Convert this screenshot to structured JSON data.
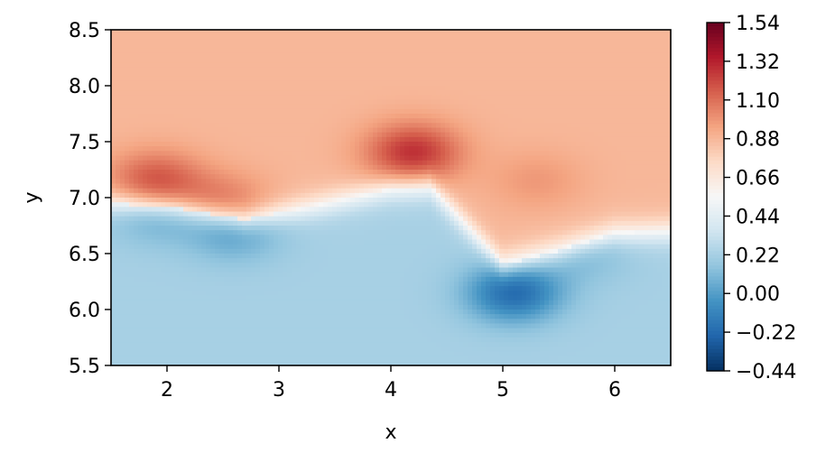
{
  "chart_data": {
    "type": "heatmap",
    "title": "",
    "xlabel": "x",
    "ylabel": "y",
    "xlim": [
      1.5,
      6.5
    ],
    "ylim": [
      5.5,
      8.5
    ],
    "x_ticks": [
      2,
      3,
      4,
      5,
      6
    ],
    "x_tick_labels": [
      "2",
      "3",
      "4",
      "5",
      "6"
    ],
    "y_ticks": [
      5.5,
      6.0,
      6.5,
      7.0,
      7.5,
      8.0,
      8.5
    ],
    "y_tick_labels": [
      "5.5",
      "6.0",
      "6.5",
      "7.0",
      "7.5",
      "8.0",
      "8.5"
    ],
    "colormap": "RdBu_r",
    "colorbar": {
      "min": -0.44,
      "max": 1.54,
      "ticks": [
        -0.44,
        -0.22,
        0.0,
        0.22,
        0.44,
        0.66,
        0.88,
        1.1,
        1.32,
        1.54
      ],
      "tick_labels": [
        "−0.44",
        "−0.22",
        "0.00",
        "0.22",
        "0.44",
        "0.66",
        "0.88",
        "1.10",
        "1.32",
        "1.54"
      ]
    },
    "grid": false,
    "field": {
      "boundary": [
        [
          1.5,
          6.95
        ],
        [
          2.1,
          6.9
        ],
        [
          2.7,
          6.8
        ],
        [
          3.3,
          6.92
        ],
        [
          4.0,
          7.08
        ],
        [
          4.35,
          7.1
        ],
        [
          5.0,
          6.4
        ],
        [
          5.5,
          6.52
        ],
        [
          6.0,
          6.68
        ],
        [
          6.5,
          6.7
        ]
      ],
      "above_base": 0.88,
      "below_base": 0.22,
      "hotspots": [
        {
          "x": 4.2,
          "y": 7.4,
          "value": 1.28
        },
        {
          "x": 1.9,
          "y": 7.15,
          "value": 1.18
        },
        {
          "x": 2.5,
          "y": 6.95,
          "value": 1.08
        },
        {
          "x": 5.3,
          "y": 7.15,
          "value": 0.98
        },
        {
          "x": 5.1,
          "y": 6.15,
          "value": -0.22
        },
        {
          "x": 2.6,
          "y": 6.7,
          "value": 0.0
        },
        {
          "x": 1.9,
          "y": 6.85,
          "value": 0.05
        },
        {
          "x": 5.7,
          "y": 6.5,
          "value": 0.1
        }
      ]
    }
  }
}
